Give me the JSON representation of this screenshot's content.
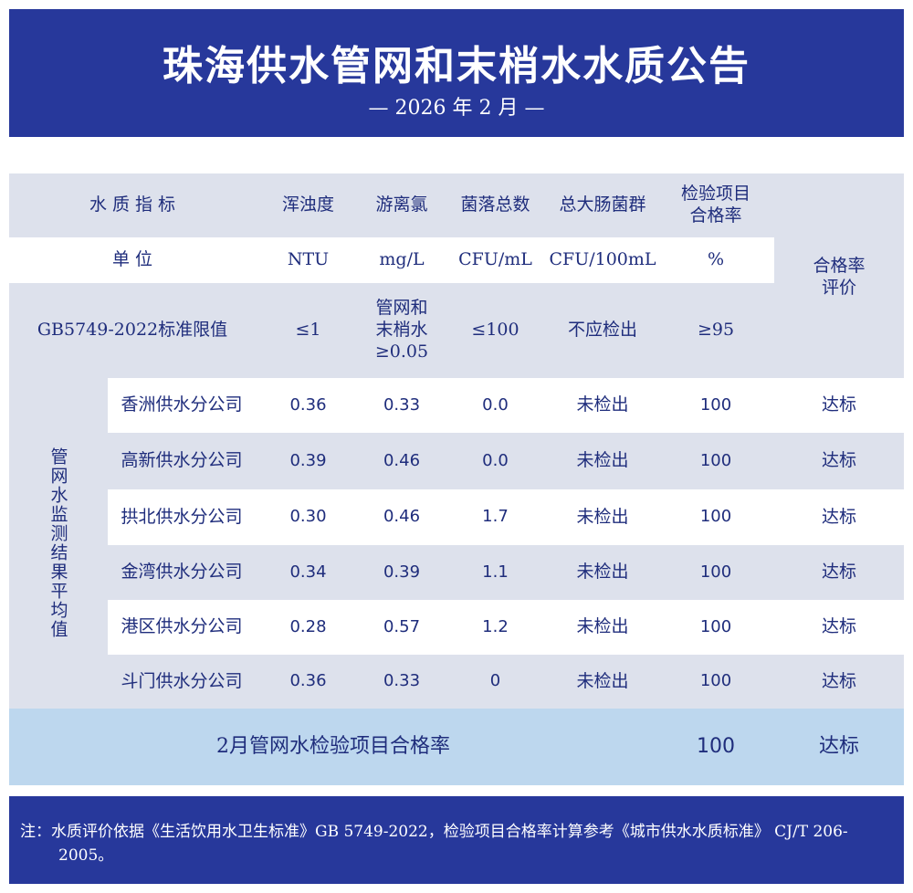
{
  "header": {
    "title": "珠海供水管网和末梢水水质公告",
    "subtitle": "— 2026 年 2 月 —"
  },
  "table": {
    "indicator_label": "水 质 指 标",
    "columns": [
      "浑浊度",
      "游离氯",
      "菌落总数",
      "总大肠菌群",
      "检验项目\n合格率"
    ],
    "evaluation_label": "合格率\n评价",
    "unit_label": "单 位",
    "units": [
      "NTU",
      "mg/L",
      "CFU/mL",
      "CFU/100mL",
      "%"
    ],
    "standard_label": "GB5749-2022标准限值",
    "standards": [
      "≤1",
      "管网和\n末梢水\n≥0.05",
      "≤100",
      "不应检出",
      "≥95"
    ],
    "group_label": "管网水监测结果平均值",
    "rows": [
      [
        "香洲供水分公司",
        "0.36",
        "0.33",
        "0.0",
        "未检出",
        "100",
        "达标"
      ],
      [
        "高新供水分公司",
        "0.39",
        "0.46",
        "0.0",
        "未检出",
        "100",
        "达标"
      ],
      [
        "拱北供水分公司",
        "0.30",
        "0.46",
        "1.7",
        "未检出",
        "100",
        "达标"
      ],
      [
        "金湾供水分公司",
        "0.34",
        "0.39",
        "1.1",
        "未检出",
        "100",
        "达标"
      ],
      [
        "港区供水分公司",
        "0.28",
        "0.57",
        "1.2",
        "未检出",
        "100",
        "达标"
      ],
      [
        "斗门供水分公司",
        "0.36",
        "0.33",
        "0",
        "未检出",
        "100",
        "达标"
      ]
    ],
    "summary": [
      "2月管网水检验项目合格率",
      "100",
      "达标"
    ]
  },
  "footer": {
    "note": "注：水质评价依据《生活饮用水卫生标准》GB 5749-2022，检验项目合格率计算参考《城市供水水质标准》 CJ/T 206-2005。"
  }
}
